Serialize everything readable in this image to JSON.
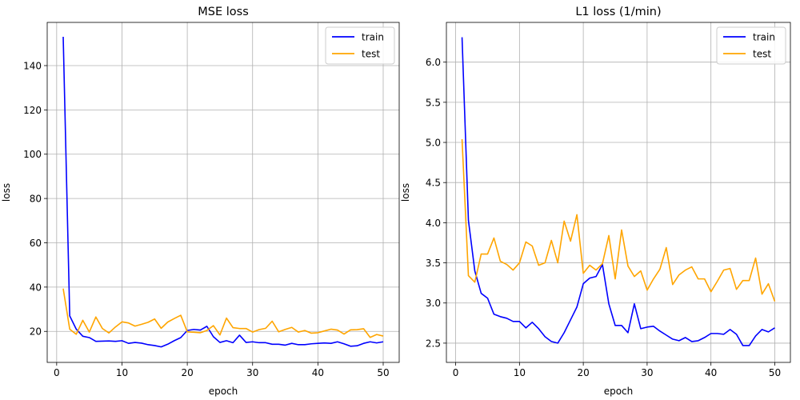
{
  "chart_data": [
    {
      "type": "line",
      "title": "MSE loss",
      "xlabel": "epoch",
      "ylabel": "loss",
      "xlim": [
        -1.45,
        52.45
      ],
      "ylim": [
        6.0,
        159.5
      ],
      "xticks": [
        0,
        10,
        20,
        30,
        40,
        50
      ],
      "yticks": [
        20,
        40,
        60,
        80,
        100,
        120,
        140
      ],
      "grid": true,
      "legend": "top-right",
      "x": [
        1,
        2,
        3,
        4,
        5,
        6,
        7,
        8,
        9,
        10,
        11,
        12,
        13,
        14,
        15,
        16,
        17,
        18,
        19,
        20,
        21,
        22,
        23,
        24,
        25,
        26,
        27,
        28,
        29,
        30,
        31,
        32,
        33,
        34,
        35,
        36,
        37,
        38,
        39,
        40,
        41,
        42,
        43,
        44,
        45,
        46,
        47,
        48,
        49,
        50
      ],
      "series": [
        {
          "name": "train",
          "color": "#0000ff",
          "values": [
            153.0,
            27.0,
            21.0,
            17.8,
            17.2,
            15.5,
            15.6,
            15.7,
            15.5,
            15.8,
            14.6,
            15.0,
            14.7,
            14.0,
            13.6,
            13.0,
            14.2,
            15.8,
            17.2,
            20.4,
            20.9,
            20.6,
            22.3,
            17.6,
            15.0,
            15.8,
            14.9,
            18.3,
            15.0,
            15.3,
            14.9,
            14.9,
            14.2,
            14.2,
            13.8,
            14.6,
            14.0,
            14.0,
            14.4,
            14.6,
            14.8,
            14.6,
            15.3,
            14.4,
            13.3,
            13.5,
            14.6,
            15.3,
            14.8,
            15.3
          ]
        },
        {
          "name": "test",
          "color": "#ffa500",
          "values": [
            39.3,
            21.0,
            18.7,
            25.0,
            19.7,
            26.5,
            21.3,
            19.3,
            22.0,
            24.3,
            23.8,
            22.4,
            23.2,
            24.1,
            25.6,
            21.4,
            24.2,
            25.8,
            27.3,
            19.8,
            19.6,
            19.4,
            20.4,
            22.6,
            18.4,
            26.0,
            21.7,
            21.3,
            21.3,
            19.7,
            20.8,
            21.4,
            24.6,
            19.8,
            20.9,
            21.8,
            19.7,
            20.4,
            19.2,
            19.4,
            20.2,
            21.0,
            20.6,
            18.8,
            20.7,
            20.8,
            21.2,
            17.3,
            18.6,
            17.9
          ]
        }
      ]
    },
    {
      "type": "line",
      "title": "L1 loss (1/min)",
      "xlabel": "epoch",
      "ylabel": "loss",
      "xlim": [
        -1.45,
        52.45
      ],
      "ylim": [
        2.26,
        6.495
      ],
      "xticks": [
        0,
        10,
        20,
        30,
        40,
        50
      ],
      "yticks": [
        2.5,
        3.0,
        3.5,
        4.0,
        4.5,
        5.0,
        5.5,
        6.0
      ],
      "yticklabels": [
        "2.5",
        "3.0",
        "3.5",
        "4.0",
        "4.5",
        "5.0",
        "5.5",
        "6.0"
      ],
      "grid": true,
      "legend": "top-right",
      "x": [
        1,
        2,
        3,
        4,
        5,
        6,
        7,
        8,
        9,
        10,
        11,
        12,
        13,
        14,
        15,
        16,
        17,
        18,
        19,
        20,
        21,
        22,
        23,
        24,
        25,
        26,
        27,
        28,
        29,
        30,
        31,
        32,
        33,
        34,
        35,
        36,
        37,
        38,
        39,
        40,
        41,
        42,
        43,
        44,
        45,
        46,
        47,
        48,
        49,
        50
      ],
      "series": [
        {
          "name": "train",
          "color": "#0000ff",
          "values": [
            6.31,
            4.03,
            3.4,
            3.12,
            3.06,
            2.86,
            2.83,
            2.81,
            2.77,
            2.77,
            2.69,
            2.76,
            2.68,
            2.58,
            2.52,
            2.5,
            2.63,
            2.79,
            2.95,
            3.24,
            3.31,
            3.33,
            3.48,
            2.99,
            2.72,
            2.72,
            2.63,
            2.99,
            2.68,
            2.7,
            2.71,
            2.65,
            2.6,
            2.55,
            2.53,
            2.57,
            2.52,
            2.53,
            2.57,
            2.62,
            2.62,
            2.61,
            2.67,
            2.61,
            2.47,
            2.47,
            2.59,
            2.67,
            2.64,
            2.69
          ]
        },
        {
          "name": "test",
          "color": "#ffa500",
          "values": [
            5.04,
            3.34,
            3.26,
            3.61,
            3.61,
            3.81,
            3.52,
            3.48,
            3.41,
            3.5,
            3.76,
            3.71,
            3.47,
            3.5,
            3.78,
            3.5,
            4.02,
            3.77,
            4.1,
            3.37,
            3.47,
            3.41,
            3.49,
            3.84,
            3.3,
            3.91,
            3.46,
            3.33,
            3.4,
            3.16,
            3.3,
            3.42,
            3.69,
            3.23,
            3.35,
            3.41,
            3.45,
            3.3,
            3.3,
            3.14,
            3.27,
            3.41,
            3.43,
            3.17,
            3.28,
            3.28,
            3.56,
            3.11,
            3.24,
            3.02
          ]
        }
      ]
    }
  ]
}
